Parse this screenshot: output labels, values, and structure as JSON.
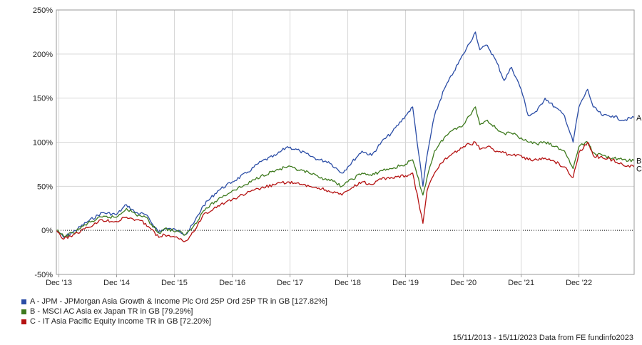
{
  "chart_data": {
    "type": "line",
    "title": "",
    "xlabel": "",
    "ylabel": "",
    "ylim": [
      -50,
      250
    ],
    "y_ticks": [
      -50,
      0,
      50,
      100,
      150,
      200,
      250
    ],
    "y_tick_suffix": "%",
    "x_ticks": [
      "Dec '13",
      "Dec '14",
      "Dec '15",
      "Dec '16",
      "Dec '17",
      "Dec '18",
      "Dec '19",
      "Dec '20",
      "Dec '21",
      "Dec '22"
    ],
    "x_range": [
      "15/11/2013",
      "15/11/2023"
    ],
    "grid": true,
    "zero_line": "dotted",
    "series": [
      {
        "name": "A - JPM - JPMorgan Asia Growth & Income Plc Ord 25P Ord 25P TR in GB [127.82%]",
        "end_label": "A",
        "color": "#2B4DA6",
        "x": [
          "2013-11-15",
          "2014-01-01",
          "2014-03-01",
          "2014-06-01",
          "2014-09-01",
          "2014-12-01",
          "2015-02-01",
          "2015-04-01",
          "2015-06-01",
          "2015-08-25",
          "2015-10-01",
          "2016-01-01",
          "2016-02-10",
          "2016-04-01",
          "2016-06-01",
          "2016-09-01",
          "2016-12-01",
          "2017-03-01",
          "2017-06-01",
          "2017-09-01",
          "2017-11-15",
          "2018-02-01",
          "2018-04-01",
          "2018-06-01",
          "2018-08-01",
          "2018-10-25",
          "2018-12-01",
          "2019-03-01",
          "2019-05-01",
          "2019-07-01",
          "2019-09-01",
          "2019-12-01",
          "2020-01-15",
          "2020-03-20",
          "2020-04-15",
          "2020-06-01",
          "2020-08-01",
          "2020-10-01",
          "2020-12-01",
          "2021-02-15",
          "2021-03-15",
          "2021-05-01",
          "2021-07-01",
          "2021-08-15",
          "2021-10-01",
          "2021-12-01",
          "2022-01-15",
          "2022-03-10",
          "2022-05-01",
          "2022-07-01",
          "2022-09-01",
          "2022-10-25",
          "2022-12-01",
          "2023-01-25",
          "2023-03-01",
          "2023-05-01",
          "2023-07-01",
          "2023-09-01",
          "2023-11-15"
        ],
        "values": [
          0,
          -8,
          -2,
          10,
          20,
          18,
          29,
          20,
          18,
          -2,
          2,
          0,
          -5,
          8,
          28,
          45,
          55,
          65,
          78,
          85,
          95,
          90,
          85,
          80,
          78,
          65,
          72,
          90,
          85,
          100,
          110,
          130,
          140,
          50,
          85,
          130,
          160,
          180,
          200,
          225,
          205,
          210,
          190,
          170,
          185,
          160,
          130,
          135,
          150,
          140,
          130,
          100,
          140,
          160,
          140,
          130,
          130,
          125,
          128
        ]
      },
      {
        "name": "B - MSCI AC Asia ex Japan TR in GB [79.29%]",
        "end_label": "B",
        "color": "#3E7A1E",
        "x": [
          "2013-11-15",
          "2014-01-01",
          "2014-03-01",
          "2014-06-01",
          "2014-09-01",
          "2014-12-01",
          "2015-02-01",
          "2015-04-01",
          "2015-06-01",
          "2015-08-25",
          "2015-10-01",
          "2016-01-01",
          "2016-02-10",
          "2016-04-01",
          "2016-06-01",
          "2016-09-01",
          "2016-12-01",
          "2017-03-01",
          "2017-06-01",
          "2017-09-01",
          "2017-11-15",
          "2018-02-01",
          "2018-04-01",
          "2018-06-01",
          "2018-08-01",
          "2018-10-25",
          "2018-12-01",
          "2019-03-01",
          "2019-05-01",
          "2019-07-01",
          "2019-09-01",
          "2019-12-01",
          "2020-01-15",
          "2020-03-20",
          "2020-04-15",
          "2020-06-01",
          "2020-08-01",
          "2020-10-01",
          "2020-12-01",
          "2021-02-15",
          "2021-03-15",
          "2021-05-01",
          "2021-07-01",
          "2021-08-15",
          "2021-10-01",
          "2021-12-01",
          "2022-01-15",
          "2022-03-10",
          "2022-05-01",
          "2022-07-01",
          "2022-09-01",
          "2022-10-25",
          "2022-12-01",
          "2023-01-25",
          "2023-03-01",
          "2023-05-01",
          "2023-07-01",
          "2023-09-01",
          "2023-11-15"
        ],
        "values": [
          0,
          -7,
          -3,
          8,
          15,
          15,
          25,
          18,
          15,
          -3,
          2,
          -2,
          -5,
          5,
          22,
          35,
          45,
          52,
          62,
          68,
          72,
          68,
          65,
          60,
          58,
          50,
          55,
          65,
          62,
          68,
          70,
          75,
          80,
          40,
          60,
          90,
          105,
          115,
          120,
          140,
          120,
          125,
          115,
          110,
          110,
          105,
          100,
          98,
          100,
          95,
          90,
          70,
          95,
          100,
          88,
          85,
          82,
          80,
          79
        ]
      },
      {
        "name": "C - IT Asia Pacific Equity Income TR in GB [72.20%]",
        "end_label": "C",
        "color": "#B51212",
        "x": [
          "2013-11-15",
          "2014-01-01",
          "2014-03-01",
          "2014-06-01",
          "2014-09-01",
          "2014-12-01",
          "2015-02-01",
          "2015-04-01",
          "2015-06-01",
          "2015-08-25",
          "2015-10-01",
          "2016-01-01",
          "2016-02-10",
          "2016-04-01",
          "2016-06-01",
          "2016-09-01",
          "2016-12-01",
          "2017-03-01",
          "2017-06-01",
          "2017-09-01",
          "2017-11-15",
          "2018-02-01",
          "2018-04-01",
          "2018-06-01",
          "2018-08-01",
          "2018-10-25",
          "2018-12-01",
          "2019-03-01",
          "2019-05-01",
          "2019-07-01",
          "2019-09-01",
          "2019-12-01",
          "2020-01-15",
          "2020-03-20",
          "2020-04-15",
          "2020-06-01",
          "2020-08-01",
          "2020-10-01",
          "2020-12-01",
          "2021-02-15",
          "2021-03-15",
          "2021-05-01",
          "2021-07-01",
          "2021-08-15",
          "2021-10-01",
          "2021-12-01",
          "2022-01-15",
          "2022-03-10",
          "2022-05-01",
          "2022-07-01",
          "2022-09-01",
          "2022-10-25",
          "2022-12-01",
          "2023-01-25",
          "2023-03-01",
          "2023-05-01",
          "2023-07-01",
          "2023-09-01",
          "2023-11-15"
        ],
        "values": [
          0,
          -10,
          -5,
          3,
          12,
          10,
          15,
          12,
          8,
          -8,
          -5,
          -10,
          -12,
          -2,
          18,
          28,
          35,
          42,
          48,
          52,
          55,
          52,
          50,
          48,
          45,
          40,
          45,
          55,
          52,
          58,
          60,
          62,
          65,
          8,
          45,
          65,
          80,
          88,
          95,
          100,
          92,
          95,
          90,
          88,
          85,
          85,
          80,
          80,
          82,
          78,
          72,
          60,
          88,
          100,
          85,
          82,
          80,
          75,
          72
        ]
      }
    ]
  },
  "footer": "15/11/2013 - 15/11/2023 Data from FE fundinfo2023"
}
